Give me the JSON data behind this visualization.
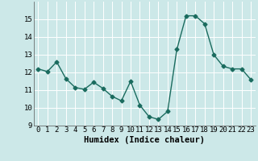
{
  "x": [
    0,
    1,
    2,
    3,
    4,
    5,
    6,
    7,
    8,
    9,
    10,
    11,
    12,
    13,
    14,
    15,
    16,
    17,
    18,
    19,
    20,
    21,
    22,
    23
  ],
  "y": [
    12.2,
    12.05,
    12.6,
    11.65,
    11.15,
    11.05,
    11.45,
    11.1,
    10.65,
    10.4,
    11.5,
    10.15,
    9.5,
    9.35,
    9.8,
    13.3,
    15.2,
    15.2,
    14.75,
    13.0,
    12.35,
    12.2,
    12.2,
    11.6
  ],
  "line_color": "#1a6b5e",
  "marker": "D",
  "marker_size": 2.5,
  "bg_color": "#cce8e8",
  "grid_color": "#ffffff",
  "xlabel": "Humidex (Indice chaleur)",
  "ylim": [
    9,
    16
  ],
  "xlim_min": -0.5,
  "xlim_max": 23.5,
  "yticks": [
    9,
    10,
    11,
    12,
    13,
    14,
    15
  ],
  "xticks": [
    0,
    1,
    2,
    3,
    4,
    5,
    6,
    7,
    8,
    9,
    10,
    11,
    12,
    13,
    14,
    15,
    16,
    17,
    18,
    19,
    20,
    21,
    22,
    23
  ],
  "xlabel_fontsize": 7.5,
  "tick_fontsize": 6.5,
  "line_width": 1.0
}
